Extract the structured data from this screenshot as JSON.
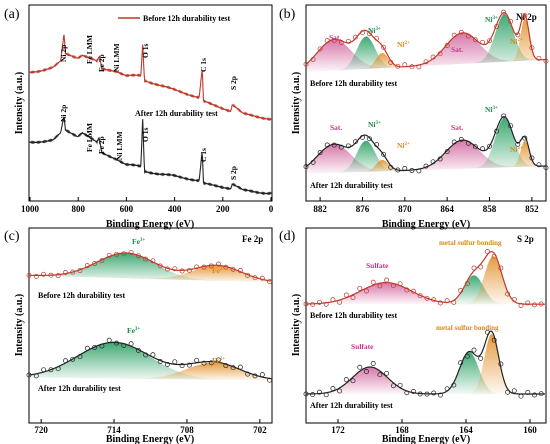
{
  "colors": {
    "red": "#c0392b",
    "black": "#222222",
    "green": "#1e9a5b",
    "pink": "#d0609a",
    "orange": "#e08a1e",
    "labelPink": "#c03a8a",
    "labelOrange": "#d4891c",
    "labelGreen": "#178a4a"
  },
  "chart_data": [
    {
      "panel": "(a)",
      "type": "line",
      "xlabel": "Binding Energy (eV)",
      "ylabel": "Intensity (a.u.)",
      "xlim": [
        1000,
        0
      ],
      "x_ticks": [
        "1000",
        "800",
        "600",
        "400",
        "200",
        "0"
      ],
      "legend": [
        "Before 12h durability test"
      ],
      "legend_placement": "top-right",
      "series": [
        {
          "name": "Before 12h durability test",
          "x": [
            1000,
            960,
            900,
            870,
            856,
            850,
            800,
            780,
            720,
            710,
            700,
            640,
            600,
            540,
            532,
            525,
            460,
            400,
            300,
            287,
            282,
            240,
            170,
            163,
            120,
            60,
            20,
            0
          ],
          "y": [
            0.58,
            0.6,
            0.64,
            0.7,
            0.98,
            0.78,
            0.74,
            0.77,
            0.7,
            0.75,
            0.62,
            0.6,
            0.55,
            0.55,
            0.88,
            0.5,
            0.45,
            0.4,
            0.32,
            0.62,
            0.28,
            0.24,
            0.18,
            0.25,
            0.15,
            0.12,
            0.1,
            0.09
          ]
        },
        {
          "name": "After 12h durability test",
          "x": [
            1000,
            960,
            900,
            870,
            856,
            850,
            800,
            780,
            720,
            712,
            700,
            640,
            600,
            540,
            532,
            525,
            460,
            400,
            300,
            287,
            282,
            240,
            170,
            163,
            120,
            60,
            20,
            0
          ],
          "y": [
            0.55,
            0.56,
            0.58,
            0.65,
            0.82,
            0.68,
            0.62,
            0.66,
            0.55,
            0.6,
            0.44,
            0.38,
            0.32,
            0.3,
            0.8,
            0.25,
            0.22,
            0.2,
            0.15,
            0.46,
            0.12,
            0.1,
            0.07,
            0.12,
            0.05,
            0.03,
            0.02,
            0.02
          ]
        }
      ],
      "annotations": [
        "Ni 2p",
        "Fe LMM",
        "Fe 2p",
        "Ni LMM",
        "O 1s",
        "C 1s",
        "S 2p",
        "Ni 2p",
        "Fe LMM",
        "Fe 2p",
        "Ni LMM",
        "O 1s",
        "C 1s",
        "S 2p",
        "After 12h durability test"
      ]
    },
    {
      "panel": "(b)",
      "type": "line",
      "title": "Ni 2p",
      "xlabel": "Binding Energy (eV)",
      "ylabel": "Intensity (a.u.)",
      "xlim": [
        884,
        850
      ],
      "x_ticks": [
        "882",
        "876",
        "870",
        "864",
        "858",
        "852"
      ],
      "peaks": {
        "Before 12h durability test": [
          {
            "label": "Sat.",
            "center": 880.0,
            "height": 0.62
          },
          {
            "label": "Ni3+",
            "center": 875.5,
            "height": 0.65
          },
          {
            "label": "Ni2+",
            "center": 873.2,
            "height": 0.3
          },
          {
            "label": "Sat.",
            "center": 861.8,
            "height": 0.62
          },
          {
            "label": "Ni3+",
            "center": 855.9,
            "height": 0.95
          },
          {
            "label": "Ni2+",
            "center": 853.0,
            "height": 0.85
          }
        ],
        "After 12h durability test": [
          {
            "label": "Sat.",
            "center": 880.0,
            "height": 0.55
          },
          {
            "label": "Ni3+",
            "center": 875.5,
            "height": 0.6
          },
          {
            "label": "Ni2+",
            "center": 873.2,
            "height": 0.22
          },
          {
            "label": "Sat.",
            "center": 861.8,
            "height": 0.55
          },
          {
            "label": "Ni3+",
            "center": 855.9,
            "height": 0.95
          },
          {
            "label": "Ni2+",
            "center": 853.0,
            "height": 0.5
          }
        ]
      },
      "labels": [
        "Sat.",
        "Ni3+",
        "Ni2+",
        "Sat.",
        "Ni3+",
        "Ni2+",
        "Before 12h durability test",
        "Sat.",
        "Ni3+",
        "Ni2+",
        "Sat.",
        "Ni3+",
        "Ni2+",
        "After 12h durability test"
      ]
    },
    {
      "panel": "(c)",
      "type": "line",
      "title": "Fe 2p",
      "xlabel": "Binding Energy (eV)",
      "ylabel": "Intensity (a.u.)",
      "xlim": [
        721,
        701
      ],
      "x_ticks": [
        "720",
        "714",
        "708",
        "702"
      ],
      "peaks": {
        "Before 12h durability test": [
          {
            "label": "Fe3+",
            "center": 713.0,
            "height": 0.9
          },
          {
            "label": "Fe2+",
            "center": 705.5,
            "height": 0.55
          }
        ],
        "After 12h durability test": [
          {
            "label": "Fe3+",
            "center": 714.0,
            "height": 0.95
          },
          {
            "label": "Fe2+",
            "center": 705.8,
            "height": 0.45
          }
        ]
      },
      "labels": [
        "Fe3+",
        "Fe2+",
        "Before 12h durability test",
        "Fe3+",
        "Fe2+",
        "After 12h durability test"
      ]
    },
    {
      "panel": "(d)",
      "type": "line",
      "title": "S 2p",
      "xlabel": "Binding Energy (eV)",
      "ylabel": "Intensity (a.u.)",
      "xlim": [
        174,
        159
      ],
      "x_ticks": [
        "172",
        "168",
        "164",
        "160"
      ],
      "peaks": {
        "Before 12h durability test": [
          {
            "label": "Sulfate",
            "center": 169.0,
            "height": 0.45
          },
          {
            "label": "metal sulfur bonding",
            "center": 163.5,
            "height": 0.6
          },
          {
            "label": "metal sulfur bonding",
            "center": 162.3,
            "height": 1.0
          }
        ],
        "After 12h durability test": [
          {
            "label": "Sulfate",
            "center": 170.0,
            "height": 0.45
          },
          {
            "label": "metal sulfur bonding",
            "center": 163.8,
            "height": 0.7
          },
          {
            "label": "metal sulfur bonding",
            "center": 162.4,
            "height": 1.0
          }
        ]
      },
      "labels": [
        "Sulfate",
        "metal sulfur bonding",
        "Before 12h durability test",
        "Sulfate",
        "metal sulfur bonding",
        "After 12h durability test"
      ]
    }
  ],
  "text": {
    "a": {
      "panel": "(a)",
      "ylabel": "Intensity (a.u.)",
      "xlabel": "Binding Energy (eV)",
      "ticks": [
        "1000",
        "800",
        "600",
        "400",
        "200",
        "0"
      ],
      "legend": "Before 12h durability test",
      "after": "After 12h durability test",
      "top": {
        "ni2p": "Ni 2p",
        "felmm": "Fe LMM",
        "fe2p": "Fe 2p",
        "nilmm": "Ni LMM",
        "o1s": "O 1s",
        "c1s": "C 1s",
        "s2p": "S 2p"
      },
      "bottom": {
        "ni2p": "Ni 2p",
        "felmm": "Fe LMM",
        "fe2p": "Fe 2p",
        "nilmm": "Ni LMM",
        "o1s": "O 1s",
        "c1s": "C 1s",
        "s2p": "S 2p"
      }
    },
    "b": {
      "panel": "(b)",
      "title": "Ni 2p",
      "ylabel": "Intensity (a.u.)",
      "xlabel": "Binding Energy (eV)",
      "ticks": [
        "882",
        "876",
        "870",
        "864",
        "858",
        "852"
      ],
      "before": "Before 12h durability test",
      "after": "After 12h durability test",
      "sat": "Sat.",
      "ni": "Ni",
      "sup3": "3+",
      "sup2": "2+"
    },
    "c": {
      "panel": "(c)",
      "title": "Fe 2p",
      "ylabel": "Intensity (a.u.)",
      "xlabel": "Binding Energy (eV)",
      "ticks": [
        "720",
        "714",
        "708",
        "702"
      ],
      "before": "Before 12h durability test",
      "after": "After 12h durability test",
      "fe": "Fe",
      "sup3": "3+",
      "sup2": "2+"
    },
    "d": {
      "panel": "(d)",
      "title": "S 2p",
      "ylabel": "Intensity (a.u.)",
      "xlabel": "Binding Energy (eV)",
      "ticks": [
        "172",
        "168",
        "164",
        "160"
      ],
      "before": "Before 12h durability test",
      "after": "After 12h durability test",
      "sulfate": "Sulfate",
      "msb": "metal sulfur bonding"
    }
  }
}
